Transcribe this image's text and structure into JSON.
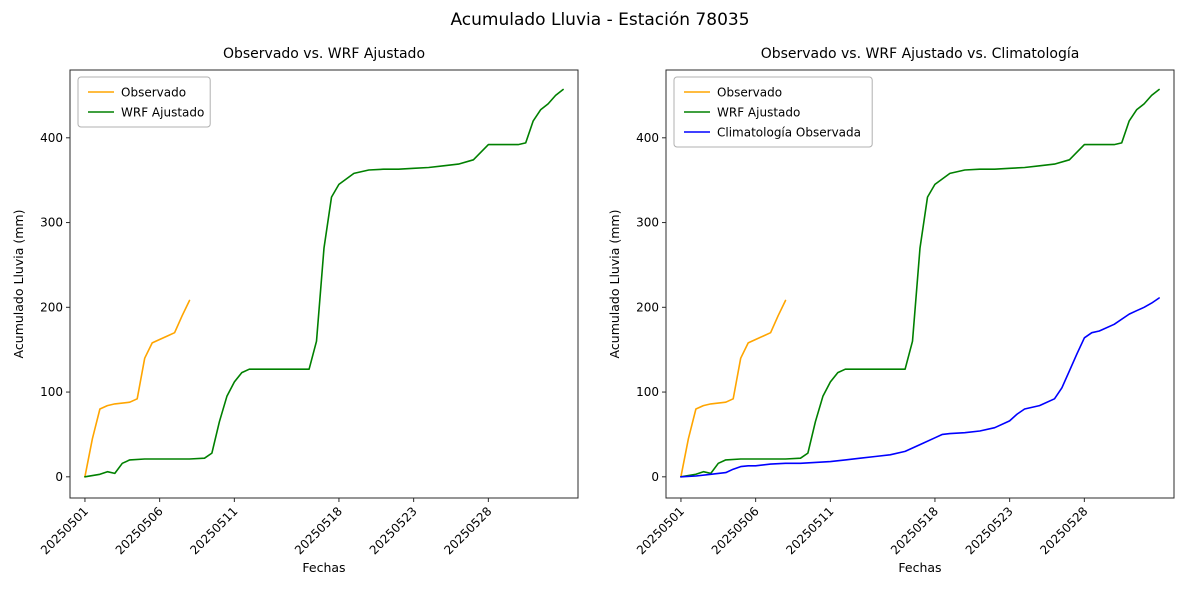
{
  "figure": {
    "title": "Acumulado Lluvia - Estación 78035",
    "background_color": "#ffffff",
    "text_color": "#000000",
    "spine_color": "#2b2b2b",
    "legend_border_color": "#b0b0b0"
  },
  "chart_data": [
    {
      "type": "line",
      "title": "Observado vs. WRF Ajustado",
      "xlabel": "Fechas",
      "ylabel": "Acumulado Lluvia (mm)",
      "x_encoding": "days since 20250501",
      "xlim": [
        -1,
        33
      ],
      "ylim": [
        -25,
        480
      ],
      "grid": false,
      "yticks": [
        0,
        100,
        200,
        300,
        400
      ],
      "xticks": [
        {
          "pos": 0,
          "label": "20250501"
        },
        {
          "pos": 5,
          "label": "20250506"
        },
        {
          "pos": 10,
          "label": "20250511"
        },
        {
          "pos": 17,
          "label": "20250518"
        },
        {
          "pos": 22,
          "label": "20250523"
        },
        {
          "pos": 27,
          "label": "20250528"
        }
      ],
      "legend": {
        "position": "upper left",
        "entries": [
          "Observado",
          "WRF Ajustado"
        ]
      },
      "series": [
        {
          "name": "Observado",
          "color": "#FFA500",
          "x": [
            0,
            0.5,
            1,
            1.5,
            2,
            3,
            3.5,
            4,
            4.5,
            5,
            5.5,
            6,
            6.5,
            7
          ],
          "y": [
            0,
            45,
            80,
            84,
            86,
            88,
            92,
            140,
            158,
            162,
            166,
            170,
            190,
            208
          ]
        },
        {
          "name": "WRF Ajustado",
          "color": "#008000",
          "x": [
            0,
            1,
            1.5,
            2,
            2.5,
            3,
            4,
            5,
            6,
            7,
            8,
            8.5,
            9,
            9.5,
            10,
            10.5,
            11,
            12,
            13,
            14,
            15,
            15.5,
            16,
            16.5,
            17,
            18,
            19,
            20,
            21,
            22,
            23,
            24,
            25,
            26,
            26.5,
            27,
            28,
            29,
            29.5,
            30,
            30.5,
            31,
            31.5,
            32
          ],
          "y": [
            0,
            3,
            6,
            4,
            16,
            20,
            21,
            21,
            21,
            21,
            22,
            28,
            65,
            95,
            112,
            123,
            127,
            127,
            127,
            127,
            127,
            160,
            270,
            330,
            345,
            358,
            362,
            363,
            363,
            364,
            365,
            367,
            369,
            374,
            383,
            392,
            392,
            392,
            394,
            420,
            433,
            440,
            450,
            457
          ]
        }
      ]
    },
    {
      "type": "line",
      "title": "Observado vs. WRF Ajustado vs. Climatología",
      "xlabel": "Fechas",
      "ylabel": "Acumulado Lluvia (mm)",
      "x_encoding": "days since 20250501",
      "xlim": [
        -1,
        33
      ],
      "ylim": [
        -25,
        480
      ],
      "grid": false,
      "yticks": [
        0,
        100,
        200,
        300,
        400
      ],
      "xticks": [
        {
          "pos": 0,
          "label": "20250501"
        },
        {
          "pos": 5,
          "label": "20250506"
        },
        {
          "pos": 10,
          "label": "20250511"
        },
        {
          "pos": 17,
          "label": "20250518"
        },
        {
          "pos": 22,
          "label": "20250523"
        },
        {
          "pos": 27,
          "label": "20250528"
        }
      ],
      "legend": {
        "position": "upper left",
        "entries": [
          "Observado",
          "WRF Ajustado",
          "Climatología Observada"
        ]
      },
      "series": [
        {
          "name": "Observado",
          "color": "#FFA500",
          "x": [
            0,
            0.5,
            1,
            1.5,
            2,
            3,
            3.5,
            4,
            4.5,
            5,
            5.5,
            6,
            6.5,
            7
          ],
          "y": [
            0,
            45,
            80,
            84,
            86,
            88,
            92,
            140,
            158,
            162,
            166,
            170,
            190,
            208
          ]
        },
        {
          "name": "WRF Ajustado",
          "color": "#008000",
          "x": [
            0,
            1,
            1.5,
            2,
            2.5,
            3,
            4,
            5,
            6,
            7,
            8,
            8.5,
            9,
            9.5,
            10,
            10.5,
            11,
            12,
            13,
            14,
            15,
            15.5,
            16,
            16.5,
            17,
            18,
            19,
            20,
            21,
            22,
            23,
            24,
            25,
            26,
            26.5,
            27,
            28,
            29,
            29.5,
            30,
            30.5,
            31,
            31.5,
            32
          ],
          "y": [
            0,
            3,
            6,
            4,
            16,
            20,
            21,
            21,
            21,
            21,
            22,
            28,
            65,
            95,
            112,
            123,
            127,
            127,
            127,
            127,
            127,
            160,
            270,
            330,
            345,
            358,
            362,
            363,
            363,
            364,
            365,
            367,
            369,
            374,
            383,
            392,
            392,
            392,
            394,
            420,
            433,
            440,
            450,
            457
          ]
        },
        {
          "name": "Climatología Observada",
          "color": "#0000FF",
          "x": [
            0,
            1,
            2,
            3,
            3.5,
            4,
            4.5,
            5,
            6,
            7,
            8,
            9,
            10,
            11,
            12,
            13,
            14,
            15,
            16,
            17,
            17.5,
            18,
            19,
            20,
            21,
            22,
            22.5,
            23,
            24,
            25,
            25.5,
            26,
            26.5,
            27,
            27.5,
            28,
            29,
            30,
            30.5,
            31,
            31.5,
            32
          ],
          "y": [
            0,
            1,
            3,
            5,
            9,
            12,
            13,
            13,
            15,
            16,
            16,
            17,
            18,
            20,
            22,
            24,
            26,
            30,
            38,
            46,
            50,
            51,
            52,
            54,
            58,
            66,
            74,
            80,
            84,
            92,
            105,
            125,
            145,
            164,
            170,
            172,
            180,
            192,
            196,
            200,
            205,
            211
          ]
        }
      ]
    }
  ]
}
